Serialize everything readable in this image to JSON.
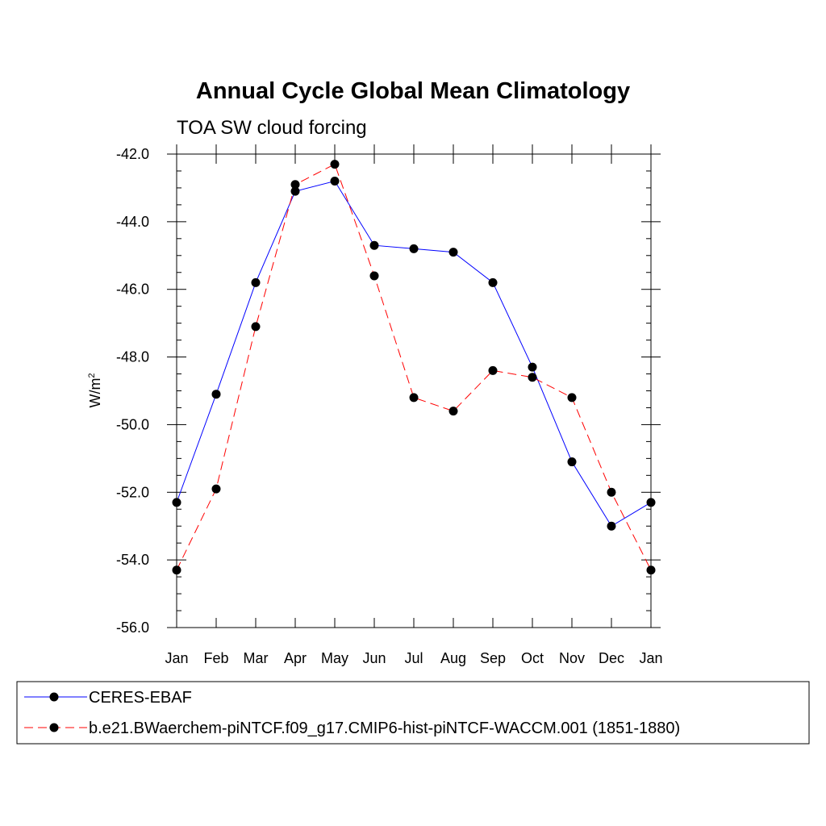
{
  "chart_data": {
    "type": "line",
    "title": "Annual Cycle Global Mean Climatology",
    "subtitle": "TOA SW cloud forcing",
    "ylabel": "W/m",
    "ylabel_superscript": "2",
    "xlabel": "",
    "categories": [
      "Jan",
      "Feb",
      "Mar",
      "Apr",
      "May",
      "Jun",
      "Jul",
      "Aug",
      "Sep",
      "Oct",
      "Nov",
      "Dec",
      "Jan"
    ],
    "ylim": [
      -56.0,
      -42.0
    ],
    "yticks": [
      -42.0,
      -44.0,
      -46.0,
      -48.0,
      -50.0,
      -52.0,
      -54.0,
      -56.0
    ],
    "ytick_labels": [
      "-42.0",
      "-44.0",
      "-46.0",
      "-48.0",
      "-50.0",
      "-52.0",
      "-54.0",
      "-56.0"
    ],
    "series": [
      {
        "name": "CERES-EBAF",
        "color": "#0000ff",
        "line_style": "solid",
        "marker": "filled-circle",
        "values": [
          -52.3,
          -49.1,
          -45.8,
          -43.1,
          -42.8,
          -44.7,
          -44.8,
          -44.9,
          -45.8,
          -48.3,
          -51.1,
          -53.0,
          -52.3
        ]
      },
      {
        "name": "b.e21.BWaerchem-piNTCF.f09_g17.CMIP6-hist-piNTCF-WACCM.001 (1851-1880)",
        "color": "#ff0000",
        "line_style": "dashed",
        "marker": "filled-circle",
        "values": [
          -54.3,
          -51.9,
          -47.1,
          -42.9,
          -42.3,
          -45.6,
          -49.2,
          -49.6,
          -48.4,
          -48.6,
          -49.2,
          -52.0,
          -54.3
        ]
      }
    ],
    "legend_position": "bottom"
  }
}
